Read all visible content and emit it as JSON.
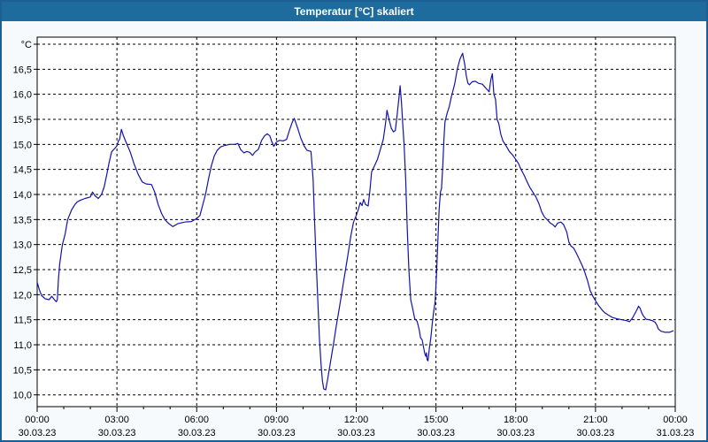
{
  "window": {
    "title": "Temperatur [°C] skaliert"
  },
  "colors": {
    "titlebar_bg": "#1e6b9e",
    "titlebar_text": "#ffffff",
    "window_border": "#1c5f93",
    "window_bg": "#f7fafd",
    "plot_bg": "#ffffff",
    "grid": "#000000",
    "axis": "#000000",
    "series_line": "#1313ab",
    "tick_text": "#000000"
  },
  "chart_data": {
    "type": "line",
    "title": "Temperatur [°C] skaliert",
    "y_unit_label": "°C",
    "grid": "dashed",
    "legend": "none",
    "ylim": [
      9.8,
      17.15
    ],
    "xlim_hours": [
      0,
      24
    ],
    "y_ticks": [
      {
        "v": 17.0,
        "label": "°C"
      },
      {
        "v": 16.5,
        "label": "16,5"
      },
      {
        "v": 16.0,
        "label": "16,0"
      },
      {
        "v": 15.5,
        "label": "15,5"
      },
      {
        "v": 15.0,
        "label": "15,0"
      },
      {
        "v": 14.5,
        "label": "14,5"
      },
      {
        "v": 14.0,
        "label": "14,0"
      },
      {
        "v": 13.5,
        "label": "13,5"
      },
      {
        "v": 13.0,
        "label": "13,0"
      },
      {
        "v": 12.5,
        "label": "12,5"
      },
      {
        "v": 12.0,
        "label": "12,0"
      },
      {
        "v": 11.5,
        "label": "11,5"
      },
      {
        "v": 11.0,
        "label": "11,0"
      },
      {
        "v": 10.5,
        "label": "10,5"
      },
      {
        "v": 10.0,
        "label": "10,0"
      }
    ],
    "x_ticks": [
      {
        "h": 0,
        "time": "00:00",
        "date": "30.03.23"
      },
      {
        "h": 3,
        "time": "03:00",
        "date": "30.03.23"
      },
      {
        "h": 6,
        "time": "06:00",
        "date": "30.03.23"
      },
      {
        "h": 9,
        "time": "09:00",
        "date": "30.03.23"
      },
      {
        "h": 12,
        "time": "12:00",
        "date": "30.03.23"
      },
      {
        "h": 15,
        "time": "15:00",
        "date": "30.03.23"
      },
      {
        "h": 18,
        "time": "18:00",
        "date": "30.03.23"
      },
      {
        "h": 21,
        "time": "21:00",
        "date": "30.03.23"
      },
      {
        "h": 24,
        "time": "00:00",
        "date": "31.03.23"
      }
    ],
    "series": [
      {
        "name": "Temperatur",
        "color": "#1313ab",
        "points": [
          [
            0,
            12.25
          ],
          [
            0.08,
            12.1
          ],
          [
            0.17,
            11.98
          ],
          [
            0.3,
            11.92
          ],
          [
            0.45,
            11.9
          ],
          [
            0.55,
            11.97
          ],
          [
            0.65,
            11.9
          ],
          [
            0.72,
            11.86
          ],
          [
            0.76,
            11.9
          ],
          [
            0.8,
            12.3
          ],
          [
            0.85,
            12.62
          ],
          [
            0.95,
            13.0
          ],
          [
            1.05,
            13.2
          ],
          [
            1.15,
            13.5
          ],
          [
            1.3,
            13.7
          ],
          [
            1.42,
            13.8
          ],
          [
            1.5,
            13.85
          ],
          [
            1.6,
            13.88
          ],
          [
            1.8,
            13.92
          ],
          [
            2.0,
            13.95
          ],
          [
            2.08,
            14.05
          ],
          [
            2.18,
            13.97
          ],
          [
            2.3,
            13.92
          ],
          [
            2.42,
            14.0
          ],
          [
            2.52,
            14.15
          ],
          [
            2.62,
            14.4
          ],
          [
            2.7,
            14.62
          ],
          [
            2.8,
            14.85
          ],
          [
            2.92,
            14.92
          ],
          [
            3.0,
            14.97
          ],
          [
            3.05,
            15.06
          ],
          [
            3.1,
            15.1
          ],
          [
            3.17,
            15.3
          ],
          [
            3.24,
            15.18
          ],
          [
            3.33,
            15.06
          ],
          [
            3.5,
            14.85
          ],
          [
            3.65,
            14.6
          ],
          [
            3.8,
            14.4
          ],
          [
            3.95,
            14.25
          ],
          [
            4.1,
            14.21
          ],
          [
            4.3,
            14.2
          ],
          [
            4.42,
            14.05
          ],
          [
            4.55,
            13.8
          ],
          [
            4.68,
            13.62
          ],
          [
            4.8,
            13.5
          ],
          [
            4.95,
            13.42
          ],
          [
            5.1,
            13.36
          ],
          [
            5.3,
            13.42
          ],
          [
            5.55,
            13.45
          ],
          [
            5.8,
            13.46
          ],
          [
            6.0,
            13.52
          ],
          [
            6.12,
            13.58
          ],
          [
            6.22,
            13.78
          ],
          [
            6.33,
            14.0
          ],
          [
            6.44,
            14.3
          ],
          [
            6.55,
            14.57
          ],
          [
            6.66,
            14.77
          ],
          [
            6.77,
            14.88
          ],
          [
            6.9,
            14.95
          ],
          [
            7.05,
            14.98
          ],
          [
            7.25,
            15.0
          ],
          [
            7.45,
            15.0
          ],
          [
            7.55,
            15.02
          ],
          [
            7.65,
            14.9
          ],
          [
            7.78,
            14.83
          ],
          [
            7.88,
            14.86
          ],
          [
            8.0,
            14.84
          ],
          [
            8.1,
            14.78
          ],
          [
            8.2,
            14.85
          ],
          [
            8.32,
            14.9
          ],
          [
            8.44,
            15.08
          ],
          [
            8.55,
            15.17
          ],
          [
            8.65,
            15.21
          ],
          [
            8.75,
            15.17
          ],
          [
            8.82,
            15.06
          ],
          [
            8.9,
            14.96
          ],
          [
            9.0,
            15.05
          ],
          [
            9.12,
            15.08
          ],
          [
            9.25,
            15.07
          ],
          [
            9.38,
            15.1
          ],
          [
            9.5,
            15.3
          ],
          [
            9.6,
            15.45
          ],
          [
            9.67,
            15.52
          ],
          [
            9.8,
            15.32
          ],
          [
            9.92,
            15.12
          ],
          [
            10.05,
            14.96
          ],
          [
            10.15,
            14.88
          ],
          [
            10.3,
            14.86
          ],
          [
            10.38,
            14.3
          ],
          [
            10.44,
            13.4
          ],
          [
            10.5,
            12.6
          ],
          [
            10.56,
            11.85
          ],
          [
            10.62,
            11.1
          ],
          [
            10.68,
            10.6
          ],
          [
            10.73,
            10.28
          ],
          [
            10.78,
            10.12
          ],
          [
            10.85,
            10.1
          ],
          [
            10.92,
            10.3
          ],
          [
            11.03,
            10.65
          ],
          [
            11.14,
            11.0
          ],
          [
            11.25,
            11.38
          ],
          [
            11.36,
            11.72
          ],
          [
            11.47,
            12.08
          ],
          [
            11.58,
            12.44
          ],
          [
            11.69,
            12.8
          ],
          [
            11.8,
            13.18
          ],
          [
            11.9,
            13.45
          ],
          [
            12.0,
            13.58
          ],
          [
            12.08,
            13.7
          ],
          [
            12.15,
            13.84
          ],
          [
            12.22,
            13.78
          ],
          [
            12.28,
            13.9
          ],
          [
            12.35,
            13.8
          ],
          [
            12.45,
            13.77
          ],
          [
            12.52,
            14.1
          ],
          [
            12.58,
            14.45
          ],
          [
            12.68,
            14.56
          ],
          [
            12.8,
            14.7
          ],
          [
            12.9,
            14.88
          ],
          [
            13.02,
            15.1
          ],
          [
            13.1,
            15.4
          ],
          [
            13.16,
            15.68
          ],
          [
            13.24,
            15.48
          ],
          [
            13.32,
            15.32
          ],
          [
            13.4,
            15.25
          ],
          [
            13.47,
            15.28
          ],
          [
            13.53,
            15.55
          ],
          [
            13.6,
            15.9
          ],
          [
            13.65,
            16.17
          ],
          [
            13.7,
            15.85
          ],
          [
            13.75,
            15.4
          ],
          [
            13.8,
            15.0
          ],
          [
            13.86,
            14.3
          ],
          [
            13.92,
            13.3
          ],
          [
            13.98,
            12.5
          ],
          [
            14.05,
            11.9
          ],
          [
            14.14,
            11.68
          ],
          [
            14.2,
            11.52
          ],
          [
            14.29,
            11.47
          ],
          [
            14.37,
            11.3
          ],
          [
            14.42,
            11.14
          ],
          [
            14.48,
            11.1
          ],
          [
            14.53,
            10.96
          ],
          [
            14.58,
            10.82
          ],
          [
            14.62,
            10.77
          ],
          [
            14.64,
            10.84
          ],
          [
            14.67,
            10.7
          ],
          [
            14.7,
            10.68
          ],
          [
            14.75,
            10.92
          ],
          [
            14.81,
            11.15
          ],
          [
            14.86,
            11.42
          ],
          [
            14.92,
            11.68
          ],
          [
            14.97,
            11.86
          ],
          [
            15.02,
            12.4
          ],
          [
            15.07,
            13.05
          ],
          [
            15.12,
            13.7
          ],
          [
            15.17,
            14.05
          ],
          [
            15.21,
            14.12
          ],
          [
            15.26,
            14.6
          ],
          [
            15.3,
            15.1
          ],
          [
            15.34,
            15.45
          ],
          [
            15.42,
            15.62
          ],
          [
            15.5,
            15.75
          ],
          [
            15.58,
            15.95
          ],
          [
            15.7,
            16.2
          ],
          [
            15.8,
            16.5
          ],
          [
            15.9,
            16.7
          ],
          [
            16.0,
            16.82
          ],
          [
            16.08,
            16.6
          ],
          [
            16.14,
            16.37
          ],
          [
            16.2,
            16.22
          ],
          [
            16.26,
            16.19
          ],
          [
            16.36,
            16.25
          ],
          [
            16.48,
            16.26
          ],
          [
            16.6,
            16.22
          ],
          [
            16.75,
            16.2
          ],
          [
            16.88,
            16.12
          ],
          [
            17.0,
            16.05
          ],
          [
            17.06,
            16.28
          ],
          [
            17.12,
            16.41
          ],
          [
            17.18,
            16.0
          ],
          [
            17.24,
            15.9
          ],
          [
            17.3,
            15.5
          ],
          [
            17.36,
            15.42
          ],
          [
            17.44,
            15.2
          ],
          [
            17.52,
            15.07
          ],
          [
            17.64,
            14.97
          ],
          [
            17.76,
            14.86
          ],
          [
            17.88,
            14.79
          ],
          [
            18.0,
            14.7
          ],
          [
            18.1,
            14.62
          ],
          [
            18.2,
            14.5
          ],
          [
            18.32,
            14.38
          ],
          [
            18.42,
            14.26
          ],
          [
            18.53,
            14.14
          ],
          [
            18.64,
            14.05
          ],
          [
            18.75,
            13.96
          ],
          [
            18.87,
            13.82
          ],
          [
            18.97,
            13.66
          ],
          [
            19.08,
            13.55
          ],
          [
            19.2,
            13.49
          ],
          [
            19.3,
            13.43
          ],
          [
            19.42,
            13.39
          ],
          [
            19.48,
            13.35
          ],
          [
            19.58,
            13.43
          ],
          [
            19.7,
            13.45
          ],
          [
            19.8,
            13.4
          ],
          [
            19.92,
            13.25
          ],
          [
            20.0,
            13.05
          ],
          [
            20.08,
            12.97
          ],
          [
            20.18,
            12.93
          ],
          [
            20.28,
            12.83
          ],
          [
            20.38,
            12.72
          ],
          [
            20.5,
            12.58
          ],
          [
            20.6,
            12.44
          ],
          [
            20.7,
            12.28
          ],
          [
            20.8,
            12.08
          ],
          [
            20.9,
            11.97
          ],
          [
            21.0,
            11.88
          ],
          [
            21.12,
            11.78
          ],
          [
            21.24,
            11.7
          ],
          [
            21.35,
            11.64
          ],
          [
            21.46,
            11.6
          ],
          [
            21.62,
            11.55
          ],
          [
            21.8,
            11.52
          ],
          [
            22.0,
            11.5
          ],
          [
            22.18,
            11.48
          ],
          [
            22.28,
            11.46
          ],
          [
            22.4,
            11.54
          ],
          [
            22.48,
            11.62
          ],
          [
            22.56,
            11.7
          ],
          [
            22.62,
            11.77
          ],
          [
            22.68,
            11.73
          ],
          [
            22.74,
            11.64
          ],
          [
            22.8,
            11.58
          ],
          [
            22.9,
            11.51
          ],
          [
            23.02,
            11.5
          ],
          [
            23.14,
            11.48
          ],
          [
            23.24,
            11.45
          ],
          [
            23.3,
            11.4
          ],
          [
            23.36,
            11.32
          ],
          [
            23.46,
            11.27
          ],
          [
            23.62,
            11.25
          ],
          [
            23.78,
            11.25
          ],
          [
            23.92,
            11.28
          ]
        ]
      }
    ]
  }
}
